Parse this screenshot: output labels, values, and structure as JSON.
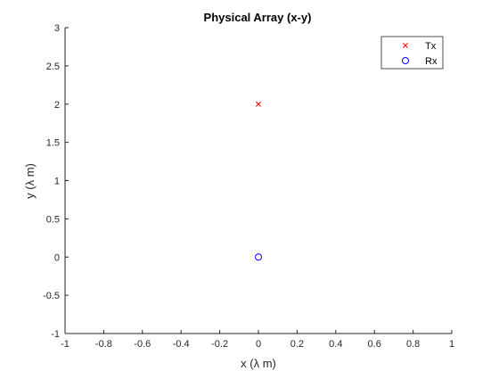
{
  "chart_data": {
    "type": "scatter",
    "title": "Physical Array (x-y)",
    "xlabel": "x (λ m)",
    "ylabel": "y (λ m)",
    "xlim": [
      -1,
      1
    ],
    "ylim": [
      -1,
      3
    ],
    "xticks": [
      -1,
      -0.8,
      -0.6,
      -0.4,
      -0.2,
      0,
      0.2,
      0.4,
      0.6,
      0.8,
      1
    ],
    "xtick_labels": [
      "-1",
      "-0.8",
      "-0.6",
      "-0.4",
      "-0.2",
      "0",
      "0.2",
      "0.4",
      "0.6",
      "0.8",
      "1"
    ],
    "yticks": [
      -1,
      -0.5,
      0,
      0.5,
      1,
      1.5,
      2,
      2.5,
      3
    ],
    "ytick_labels": [
      "-1",
      "-0.5",
      "0",
      "0.5",
      "1",
      "1.5",
      "2",
      "2.5",
      "3"
    ],
    "grid": false,
    "legend_position": "top-right",
    "series": [
      {
        "name": "Tx",
        "marker": "x-cross",
        "color": "#ff0000",
        "points": [
          {
            "x": 0,
            "y": 2
          }
        ]
      },
      {
        "name": "Rx",
        "marker": "circle",
        "color": "#0000ff",
        "points": [
          {
            "x": 0,
            "y": 0
          }
        ]
      }
    ]
  }
}
